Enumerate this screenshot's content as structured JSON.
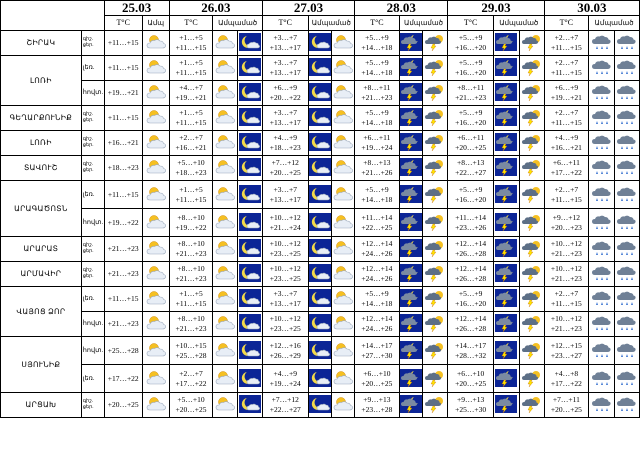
{
  "days": [
    {
      "date": "25.03"
    },
    {
      "date": "26.03"
    },
    {
      "date": "27.03"
    },
    {
      "date": "28.03"
    },
    {
      "date": "29.03"
    },
    {
      "date": "30.03"
    }
  ],
  "headers": {
    "temp": "T°C",
    "cloud": "Ամպ",
    "day": "ցերեկ",
    "night": "գիշեր",
    "cloudiness": "Ամպամած"
  },
  "time_labels": {
    "night": "գիշ.",
    "day": "ցեր."
  },
  "rows": [
    {
      "region": "ՇԻՐԱԿ",
      "sub": "",
      "r1": "+1…+5",
      "r2": "+11…+15",
      "t2": "+11…+15",
      "t3": "+3…+7",
      "t3b": "+13…+17",
      "t4": "+5…+9",
      "t4b": "+14…+18",
      "t5": "+5…+9",
      "t5b": "+16…+20",
      "t6": "+2…+7",
      "t6b": "+11…+15"
    },
    {
      "region": "ԼՈՌԻ",
      "sub": "լեռ.",
      "r1": "+1…+5",
      "r2": "+11…+15",
      "t2": "+11…+15",
      "t3": "+3…+7",
      "t3b": "+13…+17",
      "t4": "+5…+9",
      "t4b": "+14…+18",
      "t5": "+5…+9",
      "t5b": "+16…+20",
      "t6": "+2…+7",
      "t6b": "+11…+15"
    },
    {
      "region": "",
      "sub": "հովտ.",
      "r1": "+4…+7",
      "r2": "+19…+21",
      "t2": "+19…+21",
      "t3": "+6…+9",
      "t3b": "+20…+22",
      "t4": "+8…+11",
      "t4b": "+21…+23",
      "t5": "+8…+11",
      "t5b": "+21…+23",
      "t6": "+6…+9",
      "t6b": "+19…+21"
    },
    {
      "region": "ԳԵՂԱՐՔՈՒՆԻՔ",
      "sub": "",
      "r1": "+1…+5",
      "r2": "+11…+15",
      "t2": "+11…+15",
      "t3": "+3…+7",
      "t3b": "+13…+17",
      "t4": "+5…+9",
      "t4b": "+14…+18",
      "t5": "+5…+9",
      "t5b": "+16…+20",
      "t6": "+2…+7",
      "t6b": "+11…+15"
    },
    {
      "region": "ԼՈՌԻ",
      "sub": "",
      "r1": "+2…+7",
      "r2": "+16…+21",
      "t2": "+16…+21",
      "t3": "+4…+9",
      "t3b": "+18…+23",
      "t4": "+6…+11",
      "t4b": "+19…+24",
      "t5": "+6…+11",
      "t5b": "+20…+25",
      "t6": "+4…+9",
      "t6b": "+16…+21"
    },
    {
      "region": "ՏԱՎՈՒՇ",
      "sub": "",
      "r1": "+5…+10",
      "r2": "+18…+23",
      "t2": "+18…+23",
      "t3": "+7…+12",
      "t3b": "+20…+25",
      "t4": "+8…+13",
      "t4b": "+21…+26",
      "t5": "+8…+13",
      "t5b": "+22…+27",
      "t6": "+6…+11",
      "t6b": "+17…+22"
    },
    {
      "region": "ԱՐԱԳԱԾՈՏՆ",
      "sub": "լեռ.",
      "r1": "+1…+5",
      "r2": "+11…+15",
      "t2": "+11…+15",
      "t3": "+3…+7",
      "t3b": "+13…+17",
      "t4": "+5…+9",
      "t4b": "+14…+18",
      "t5": "+5…+9",
      "t5b": "+16…+20",
      "t6": "+2…+7",
      "t6b": "+11…+15"
    },
    {
      "region": "",
      "sub": "հովտ.",
      "r1": "+8…+10",
      "r2": "+19…+22",
      "t2": "+19…+22",
      "t3": "+10…+12",
      "t3b": "+21…+24",
      "t4": "+11…+14",
      "t4b": "+22…+25",
      "t5": "+11…+14",
      "t5b": "+23…+26",
      "t6": "+9…+12",
      "t6b": "+20…+23"
    },
    {
      "region": "ԱՐԱՐԱՏ",
      "sub": "",
      "r1": "+8…+10",
      "r2": "+21…+23",
      "t2": "+21…+23",
      "t3": "+10…+12",
      "t3b": "+23…+25",
      "t4": "+12…+14",
      "t4b": "+24…+26",
      "t5": "+12…+14",
      "t5b": "+26…+28",
      "t6": "+10…+12",
      "t6b": "+21…+23"
    },
    {
      "region": "ԱՐՄԱՎԻՐ",
      "sub": "",
      "r1": "+8…+10",
      "r2": "+21…+23",
      "t2": "+21…+23",
      "t3": "+10…+12",
      "t3b": "+23…+25",
      "t4": "+12…+14",
      "t4b": "+24…+26",
      "t5": "+12…+14",
      "t5b": "+26…+28",
      "t6": "+10…+12",
      "t6b": "+21…+23"
    },
    {
      "region": "ՎԱՅՈՑ ՁՈՐ",
      "sub": "լեռ.",
      "r1": "+1…+5",
      "r2": "+11…+15",
      "t2": "+11…+15",
      "t3": "+3…+7",
      "t3b": "+13…+17",
      "t4": "+5…+9",
      "t4b": "+14…+18",
      "t5": "+5…+9",
      "t5b": "+16…+20",
      "t6": "+2…+7",
      "t6b": "+11…+15"
    },
    {
      "region": "",
      "sub": "հովտ.",
      "r1": "+8…+10",
      "r2": "+21…+23",
      "t2": "+21…+23",
      "t3": "+10…+12",
      "t3b": "+23…+25",
      "t4": "+12…+14",
      "t4b": "+24…+26",
      "t5": "+12…+14",
      "t5b": "+26…+28",
      "t6": "+10…+12",
      "t6b": "+21…+23"
    },
    {
      "region": "ՍՅՈՒՆԻՔ",
      "sub": "հովտ.",
      "r1": "+10…+15",
      "r2": "+25…+28",
      "t2": "+25…+28",
      "t3": "+12…+16",
      "t3b": "+26…+29",
      "t4": "+14…+17",
      "t4b": "+27…+30",
      "t5": "+14…+17",
      "t5b": "+28…+32",
      "t6": "+12…+15",
      "t6b": "+23…+27"
    },
    {
      "region": "",
      "sub": "լեռ.",
      "r1": "+2…+7",
      "r2": "+17…+22",
      "t2": "+17…+22",
      "t3": "+4…+9",
      "t3b": "+19…+24",
      "t4": "+6…+10",
      "t4b": "+20…+25",
      "t5": "+6…+10",
      "t5b": "+20…+25",
      "t6": "+4…+8",
      "t6b": "+17…+22"
    },
    {
      "region": "ԱՐՑԱԽ",
      "sub": "",
      "r1": "+5…+10",
      "r2": "+20…+25",
      "t2": "+20…+25",
      "t3": "+7…+12",
      "t3b": "+22…+27",
      "t4": "+9…+13",
      "t4b": "+23…+28",
      "t5": "+9…+13",
      "t5b": "+25…+30",
      "t6": "+7…+11",
      "t6b": "+20…+25"
    }
  ],
  "icons": {
    "day": "sun-cloud-icon",
    "night": "moon-cloud-icon",
    "rain": "cloud-rain-icon",
    "storm": "thunderstorm-icon"
  }
}
